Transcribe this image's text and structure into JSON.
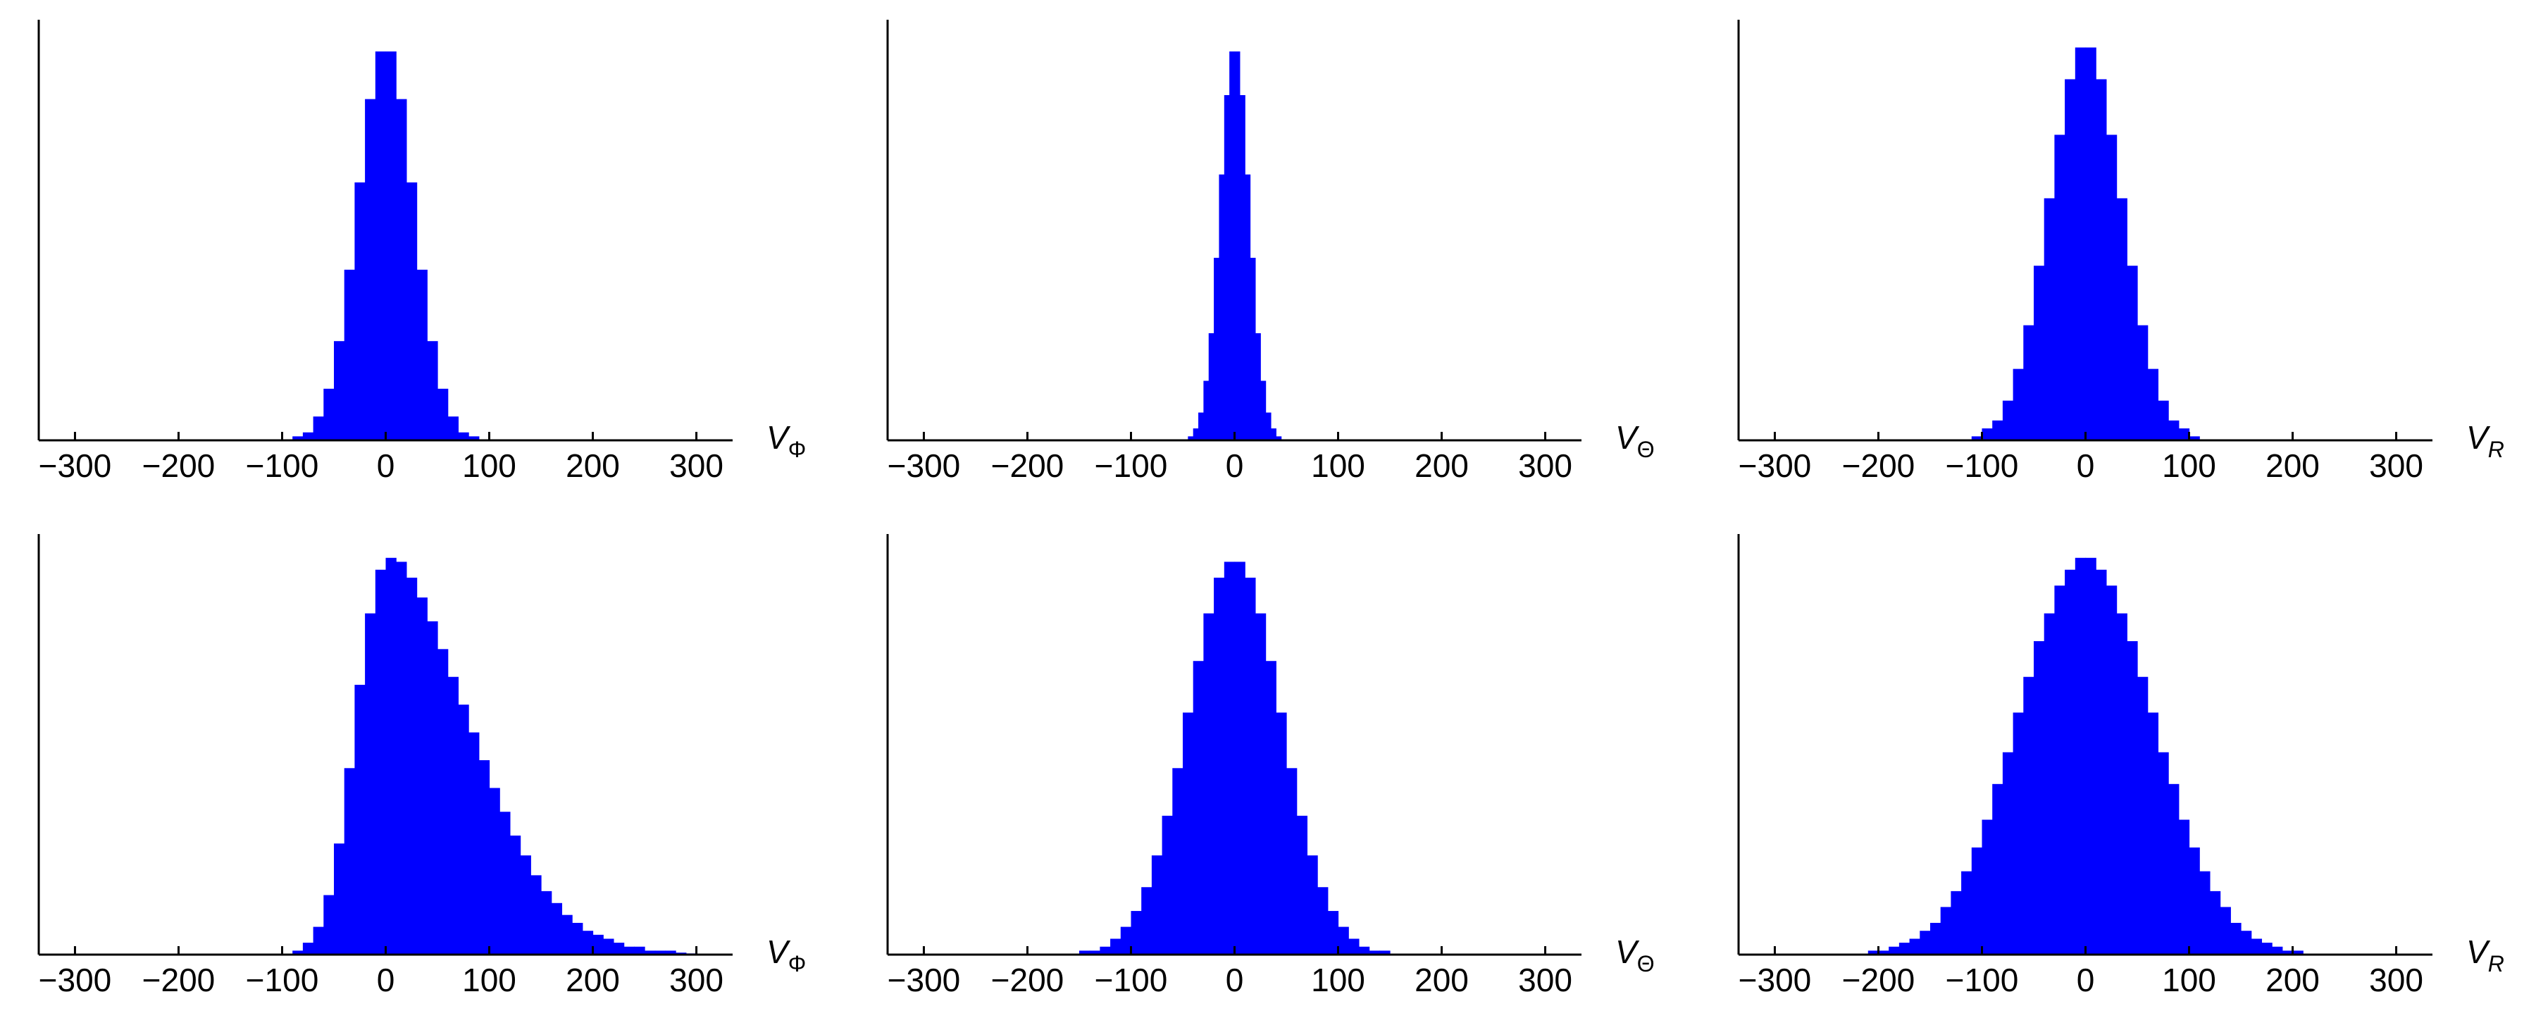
{
  "chart_data": [
    {
      "type": "histogram",
      "color": "#0000ff",
      "xlabel": "V",
      "xlabel_subscript": "Φ",
      "xlim": [
        -335,
        335
      ],
      "ylim": [
        0,
        1.06
      ],
      "xticks": [
        {
          "value": -300,
          "label": "−300"
        },
        {
          "value": -200,
          "label": "−200"
        },
        {
          "value": -100,
          "label": "−100"
        },
        0,
        100,
        200,
        300
      ],
      "bins": [
        -100,
        -90,
        -80,
        -70,
        -60,
        -50,
        -40,
        -30,
        -20,
        -10,
        0,
        10,
        20,
        30,
        40,
        50,
        60,
        70,
        80,
        90,
        100
      ],
      "values": [
        0,
        0.01,
        0.02,
        0.06,
        0.13,
        0.25,
        0.43,
        0.65,
        0.86,
        0.98,
        0.98,
        0.86,
        0.65,
        0.43,
        0.25,
        0.13,
        0.06,
        0.02,
        0.01,
        0
      ]
    },
    {
      "type": "histogram",
      "color": "#0000ff",
      "xlabel": "V",
      "xlabel_subscript": "Θ",
      "xlim": [
        -335,
        335
      ],
      "ylim": [
        0,
        1.06
      ],
      "xticks": [
        {
          "value": -300,
          "label": "−300"
        },
        {
          "value": -200,
          "label": "−200"
        },
        {
          "value": -100,
          "label": "−100"
        },
        0,
        100,
        200,
        300
      ],
      "bins": [
        -50,
        -45,
        -40,
        -35,
        -30,
        -25,
        -20,
        -15,
        -10,
        -5,
        0,
        5,
        10,
        15,
        20,
        25,
        30,
        35,
        40,
        45,
        50
      ],
      "values": [
        0,
        0.01,
        0.03,
        0.07,
        0.15,
        0.27,
        0.46,
        0.67,
        0.87,
        0.98,
        0.98,
        0.87,
        0.67,
        0.46,
        0.27,
        0.15,
        0.07,
        0.03,
        0.01,
        0
      ]
    },
    {
      "type": "histogram",
      "color": "#0000ff",
      "xlabel": "V",
      "xlabel_subscript": "R",
      "xlim": [
        -335,
        335
      ],
      "ylim": [
        0,
        1.06
      ],
      "xticks": [
        {
          "value": -300,
          "label": "−300"
        },
        {
          "value": -200,
          "label": "−200"
        },
        {
          "value": -100,
          "label": "−100"
        },
        0,
        100,
        200,
        300
      ],
      "bins": [
        -120,
        -110,
        -100,
        -90,
        -80,
        -70,
        -60,
        -50,
        -40,
        -30,
        -20,
        -10,
        0,
        10,
        20,
        30,
        40,
        50,
        60,
        70,
        80,
        90,
        100,
        110,
        120
      ],
      "values": [
        0,
        0.01,
        0.03,
        0.05,
        0.1,
        0.18,
        0.29,
        0.44,
        0.61,
        0.77,
        0.91,
        0.99,
        0.99,
        0.91,
        0.77,
        0.61,
        0.44,
        0.29,
        0.18,
        0.1,
        0.05,
        0.03,
        0.01,
        0
      ]
    },
    {
      "type": "histogram",
      "color": "#0000ff",
      "xlabel": "V",
      "xlabel_subscript": "Φ",
      "xlim": [
        -335,
        335
      ],
      "ylim": [
        0,
        1.06
      ],
      "xticks": [
        {
          "value": -300,
          "label": "−300"
        },
        {
          "value": -200,
          "label": "−200"
        },
        {
          "value": -100,
          "label": "−100"
        },
        0,
        100,
        200,
        300
      ],
      "bins": [
        -90,
        -80,
        -70,
        -60,
        -50,
        -40,
        -30,
        -20,
        -10,
        0,
        10,
        20,
        30,
        40,
        50,
        60,
        70,
        80,
        90,
        100,
        110,
        120,
        130,
        140,
        150,
        160,
        170,
        180,
        190,
        200,
        210,
        220,
        230,
        240,
        250,
        260,
        270,
        280,
        290,
        300
      ],
      "values": [
        0.01,
        0.03,
        0.07,
        0.15,
        0.28,
        0.47,
        0.68,
        0.86,
        0.97,
        1.0,
        0.99,
        0.95,
        0.9,
        0.84,
        0.77,
        0.7,
        0.63,
        0.56,
        0.49,
        0.42,
        0.36,
        0.3,
        0.25,
        0.2,
        0.16,
        0.13,
        0.1,
        0.08,
        0.06,
        0.05,
        0.04,
        0.03,
        0.02,
        0.02,
        0.01,
        0.01,
        0.01,
        0.005,
        0.003
      ]
    },
    {
      "type": "histogram",
      "color": "#0000ff",
      "xlabel": "V",
      "xlabel_subscript": "Θ",
      "xlim": [
        -335,
        335
      ],
      "ylim": [
        0,
        1.06
      ],
      "xticks": [
        {
          "value": -300,
          "label": "−300"
        },
        {
          "value": -200,
          "label": "−200"
        },
        {
          "value": -100,
          "label": "−100"
        },
        0,
        100,
        200,
        300
      ],
      "bins": [
        -160,
        -150,
        -140,
        -130,
        -120,
        -110,
        -100,
        -90,
        -80,
        -70,
        -60,
        -50,
        -40,
        -30,
        -20,
        -10,
        0,
        10,
        20,
        30,
        40,
        50,
        60,
        70,
        80,
        90,
        100,
        110,
        120,
        130,
        140,
        150,
        160
      ],
      "values": [
        0,
        0.01,
        0.01,
        0.02,
        0.04,
        0.07,
        0.11,
        0.17,
        0.25,
        0.35,
        0.47,
        0.61,
        0.74,
        0.86,
        0.95,
        0.99,
        0.99,
        0.95,
        0.86,
        0.74,
        0.61,
        0.47,
        0.35,
        0.25,
        0.17,
        0.11,
        0.07,
        0.04,
        0.02,
        0.01,
        0.01,
        0
      ]
    },
    {
      "type": "histogram",
      "color": "#0000ff",
      "xlabel": "V",
      "xlabel_subscript": "R",
      "xlim": [
        -335,
        335
      ],
      "ylim": [
        0,
        1.06
      ],
      "xticks": [
        {
          "value": -300,
          "label": "−300"
        },
        {
          "value": -200,
          "label": "−200"
        },
        {
          "value": -100,
          "label": "−100"
        },
        0,
        100,
        200,
        300
      ],
      "bins": [
        -220,
        -210,
        -200,
        -190,
        -180,
        -170,
        -160,
        -150,
        -140,
        -130,
        -120,
        -110,
        -100,
        -90,
        -80,
        -70,
        -60,
        -50,
        -40,
        -30,
        -20,
        -10,
        0,
        10,
        20,
        30,
        40,
        50,
        60,
        70,
        80,
        90,
        100,
        110,
        120,
        130,
        140,
        150,
        160,
        170,
        180,
        190,
        200,
        210,
        220
      ],
      "values": [
        0,
        0.01,
        0.01,
        0.02,
        0.03,
        0.04,
        0.06,
        0.08,
        0.12,
        0.16,
        0.21,
        0.27,
        0.34,
        0.43,
        0.51,
        0.61,
        0.7,
        0.79,
        0.86,
        0.93,
        0.97,
        1.0,
        1.0,
        0.97,
        0.93,
        0.86,
        0.79,
        0.7,
        0.61,
        0.51,
        0.43,
        0.34,
        0.27,
        0.21,
        0.16,
        0.12,
        0.08,
        0.06,
        0.04,
        0.03,
        0.02,
        0.01,
        0.01,
        0
      ]
    }
  ]
}
